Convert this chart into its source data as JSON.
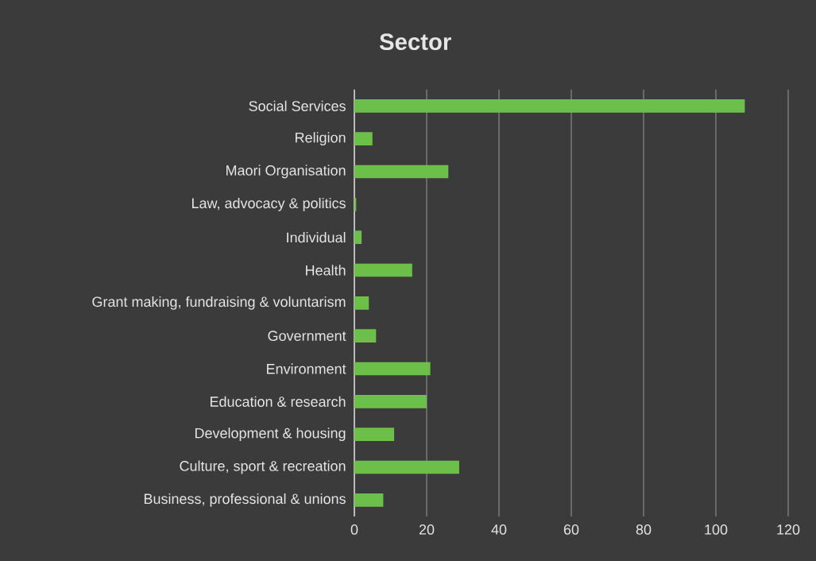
{
  "chart_data": {
    "type": "bar",
    "orientation": "horizontal",
    "title": "Sector",
    "categories": [
      "Social Services",
      "Religion",
      "Maori Organisation",
      "Law, advocacy & politics",
      "Individual",
      "Health",
      "Grant making, fundraising & voluntarism",
      "Government",
      "Environment",
      "Education & research",
      "Development & housing",
      "Culture, sport & recreation",
      "Business, professional & unions"
    ],
    "values": [
      108,
      5,
      26,
      0.5,
      2,
      16,
      4,
      6,
      21,
      20,
      11,
      29,
      8
    ],
    "color": "#6cc04a",
    "xlim": [
      0,
      120
    ],
    "xticks": [
      0,
      20,
      40,
      60,
      80,
      100,
      120
    ],
    "grid": "x"
  }
}
